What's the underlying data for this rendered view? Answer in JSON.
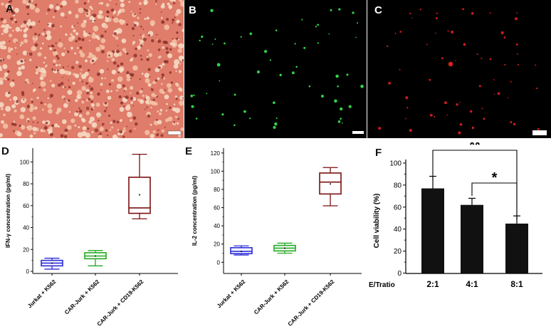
{
  "panels": {
    "A": {
      "letter": "A",
      "kind": "brightfield micrograph",
      "colors": {
        "background": "#e07c6a",
        "cells": "#8a2e2a"
      }
    },
    "B": {
      "letter": "B",
      "kind": "green fluorescence micrograph",
      "colors": {
        "background": "#000000",
        "cells": "#32d24a"
      }
    },
    "C": {
      "letter": "C",
      "kind": "red fluorescence micrograph",
      "colors": {
        "background": "#000000",
        "cells": "#e01f1f"
      }
    }
  },
  "chart_data": [
    {
      "panel": "D",
      "type": "box",
      "title": "",
      "xlabel": "",
      "ylabel": "IFN-γ concentration (pg/ml)",
      "ylim": [
        0,
        110
      ],
      "yticks": [
        0,
        20,
        40,
        60,
        80,
        100
      ],
      "categories": [
        "Jurkat + K562",
        "CAR-Jurk + K562",
        "CAR-Jurk + CD19-K562"
      ],
      "colors": [
        "#2b2bd9",
        "#22aa22",
        "#7a1010"
      ],
      "series": [
        {
          "min": 2,
          "q1": 5,
          "median": 7.5,
          "q3": 10,
          "max": 12,
          "mean": 7.5
        },
        {
          "min": 5,
          "q1": 11.5,
          "median": 14,
          "q3": 17,
          "max": 19,
          "mean": 14
        },
        {
          "min": 48,
          "q1": 53,
          "median": 58,
          "q3": 86,
          "max": 107,
          "mean": 70
        }
      ]
    },
    {
      "panel": "E",
      "type": "box",
      "title": "",
      "xlabel": "",
      "ylabel": "IL-2 concentration (pg/ml)",
      "ylim": [
        -5,
        130
      ],
      "yticks": [
        0,
        20,
        40,
        60,
        80,
        100,
        120
      ],
      "categories": [
        "Jurkat + K562",
        "CAR-Jurk + K562",
        "CAR-Jurk + CD19-K562"
      ],
      "colors": [
        "#2b2bd9",
        "#22aa22",
        "#7a1010"
      ],
      "series": [
        {
          "min": 8,
          "q1": 9.5,
          "median": 12,
          "q3": 16,
          "max": 18,
          "mean": 12
        },
        {
          "min": 10,
          "q1": 12.5,
          "median": 15.5,
          "q3": 18.5,
          "max": 21,
          "mean": 15.5
        },
        {
          "min": 62,
          "q1": 75,
          "median": 88,
          "q3": 98,
          "max": 104,
          "mean": 86
        }
      ]
    },
    {
      "panel": "F",
      "type": "bar",
      "title": "",
      "xlabel": "E/Tratio",
      "ylabel": "Cell viability (%)",
      "ylim": [
        0,
        100
      ],
      "yticks": [
        0,
        20,
        40,
        60,
        80,
        100
      ],
      "categories": [
        "2:1",
        "4:1",
        "8:1"
      ],
      "values": [
        77,
        62,
        45
      ],
      "errors": [
        11,
        6,
        7
      ],
      "bar_color": "#111111",
      "significance": [
        {
          "from": "2:1",
          "to": "8:1",
          "label": "**"
        },
        {
          "from": "4:1",
          "to": "8:1",
          "label": "*"
        }
      ]
    }
  ]
}
